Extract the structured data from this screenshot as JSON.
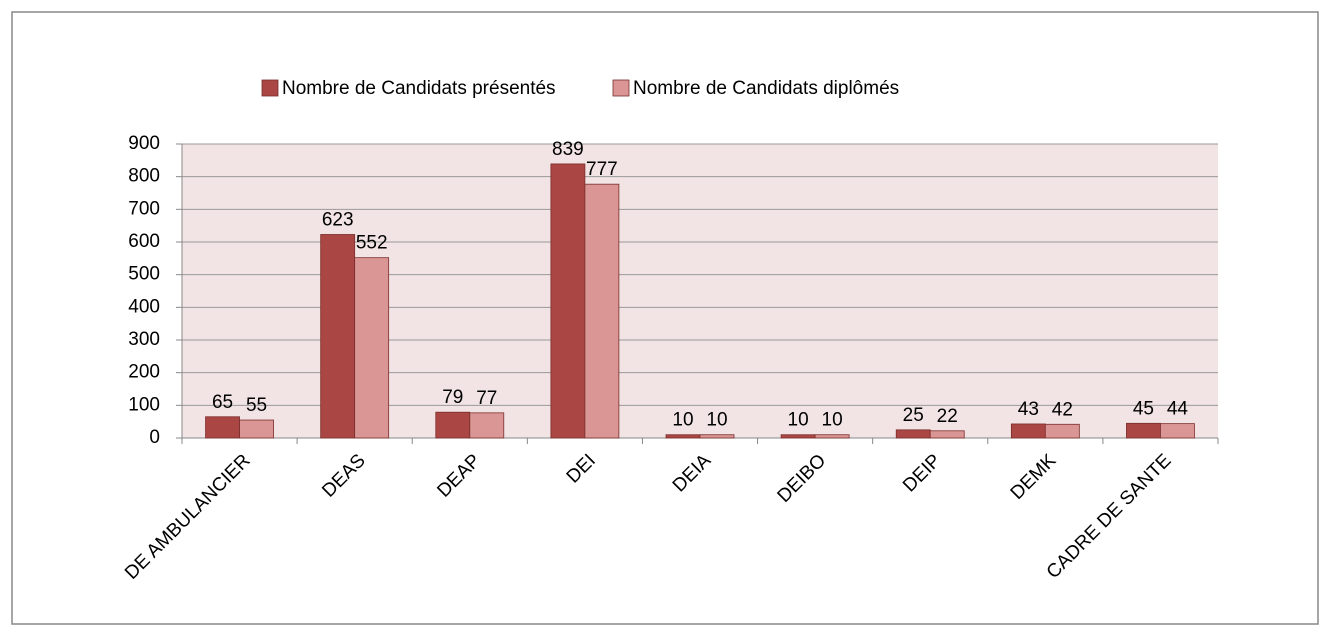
{
  "chart_data": {
    "type": "bar",
    "categories": [
      "DE AMBULANCIER",
      "DEAS",
      "DEAP",
      "DEI",
      "DEIA",
      "DEIBO",
      "DEIP",
      "DEMK",
      "CADRE DE SANTE"
    ],
    "series": [
      {
        "name": "Nombre de Candidats présentés",
        "color": "#aa4643",
        "values": [
          65,
          623,
          79,
          839,
          10,
          10,
          25,
          43,
          45
        ]
      },
      {
        "name": "Nombre de Candidats diplômés",
        "color": "#d99694",
        "values": [
          55,
          552,
          77,
          777,
          10,
          10,
          22,
          42,
          44
        ]
      }
    ],
    "ylim": [
      0,
      900
    ],
    "yticks": [
      0,
      100,
      200,
      300,
      400,
      500,
      600,
      700,
      800,
      900
    ],
    "grid": true,
    "legend": "top"
  }
}
